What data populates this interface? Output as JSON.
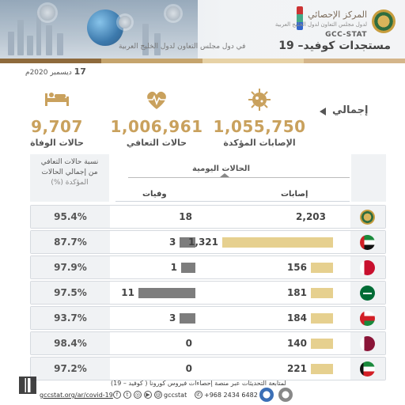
{
  "header": {
    "org_name_ar": "المركز الإحصائي",
    "org_sub_ar": "لدول مجلس التعاون لدول الخليج العربية",
    "org_short": "GCC-STAT",
    "title_ar": "مستجدات كوفيد– 19",
    "subtitle_ar": "في دول مجلس التعاون لدول الخليج العربية"
  },
  "date": {
    "value": "17",
    "month_ar": "ديسمبر 2020م"
  },
  "totals_label": "إجمالي",
  "totals": [
    {
      "icon": "virus-icon",
      "value": "1,055,750",
      "label": "الإصابات المؤكدة"
    },
    {
      "icon": "heart-pulse-icon",
      "value": "1,006,961",
      "label": "حالات التعافي"
    },
    {
      "icon": "patient-bed-icon",
      "value": "9,707",
      "label": "حالات الوفاة"
    }
  ],
  "table": {
    "ratio_header": [
      "نسبة حالات التعافي",
      "من إجمالي الحالات",
      "المؤكدة (%)"
    ],
    "daily_header": "الحالات اليومية",
    "cases_header": "إصابات",
    "deaths_header": "وفيات",
    "rows": [
      {
        "flag": "gcc-emblem-icon",
        "ratio": "95.4%",
        "deaths": "18",
        "cases": "2,203",
        "deaths_n": 18,
        "cases_n": 2203,
        "bars": false
      },
      {
        "flag": "uae-flag-icon",
        "ratio": "87.7%",
        "deaths": "3",
        "cases": "1,321",
        "deaths_n": 3,
        "cases_n": 1321,
        "bars": true
      },
      {
        "flag": "bahrain-flag-icon",
        "ratio": "97.9%",
        "deaths": "1",
        "cases": "156",
        "deaths_n": 1,
        "cases_n": 156,
        "bars": true
      },
      {
        "flag": "saudi-flag-icon",
        "ratio": "97.5%",
        "deaths": "11",
        "cases": "181",
        "deaths_n": 11,
        "cases_n": 181,
        "bars": true
      },
      {
        "flag": "oman-flag-icon",
        "ratio": "93.7%",
        "deaths": "3",
        "cases": "184",
        "deaths_n": 3,
        "cases_n": 184,
        "bars": true
      },
      {
        "flag": "qatar-flag-icon",
        "ratio": "98.4%",
        "deaths": "0",
        "cases": "140",
        "deaths_n": 0,
        "cases_n": 140,
        "bars": true
      },
      {
        "flag": "kuwait-flag-icon",
        "ratio": "97.2%",
        "deaths": "0",
        "cases": "221",
        "deaths_n": 0,
        "cases_n": 221,
        "bars": true
      }
    ]
  },
  "footer": {
    "note_ar": "لمتابعة التحديثات عبر منصة إحصاءات فيروس كورونا ( كوفيد – 19)",
    "url": "gccstat.org/ar/covid-19",
    "handle": "gccstat",
    "phone": "+968 2434 6482"
  },
  "colors": {
    "accent": "#c9a15d",
    "case_bar": "#e6d08f",
    "death_bar": "#7d7d7d"
  }
}
